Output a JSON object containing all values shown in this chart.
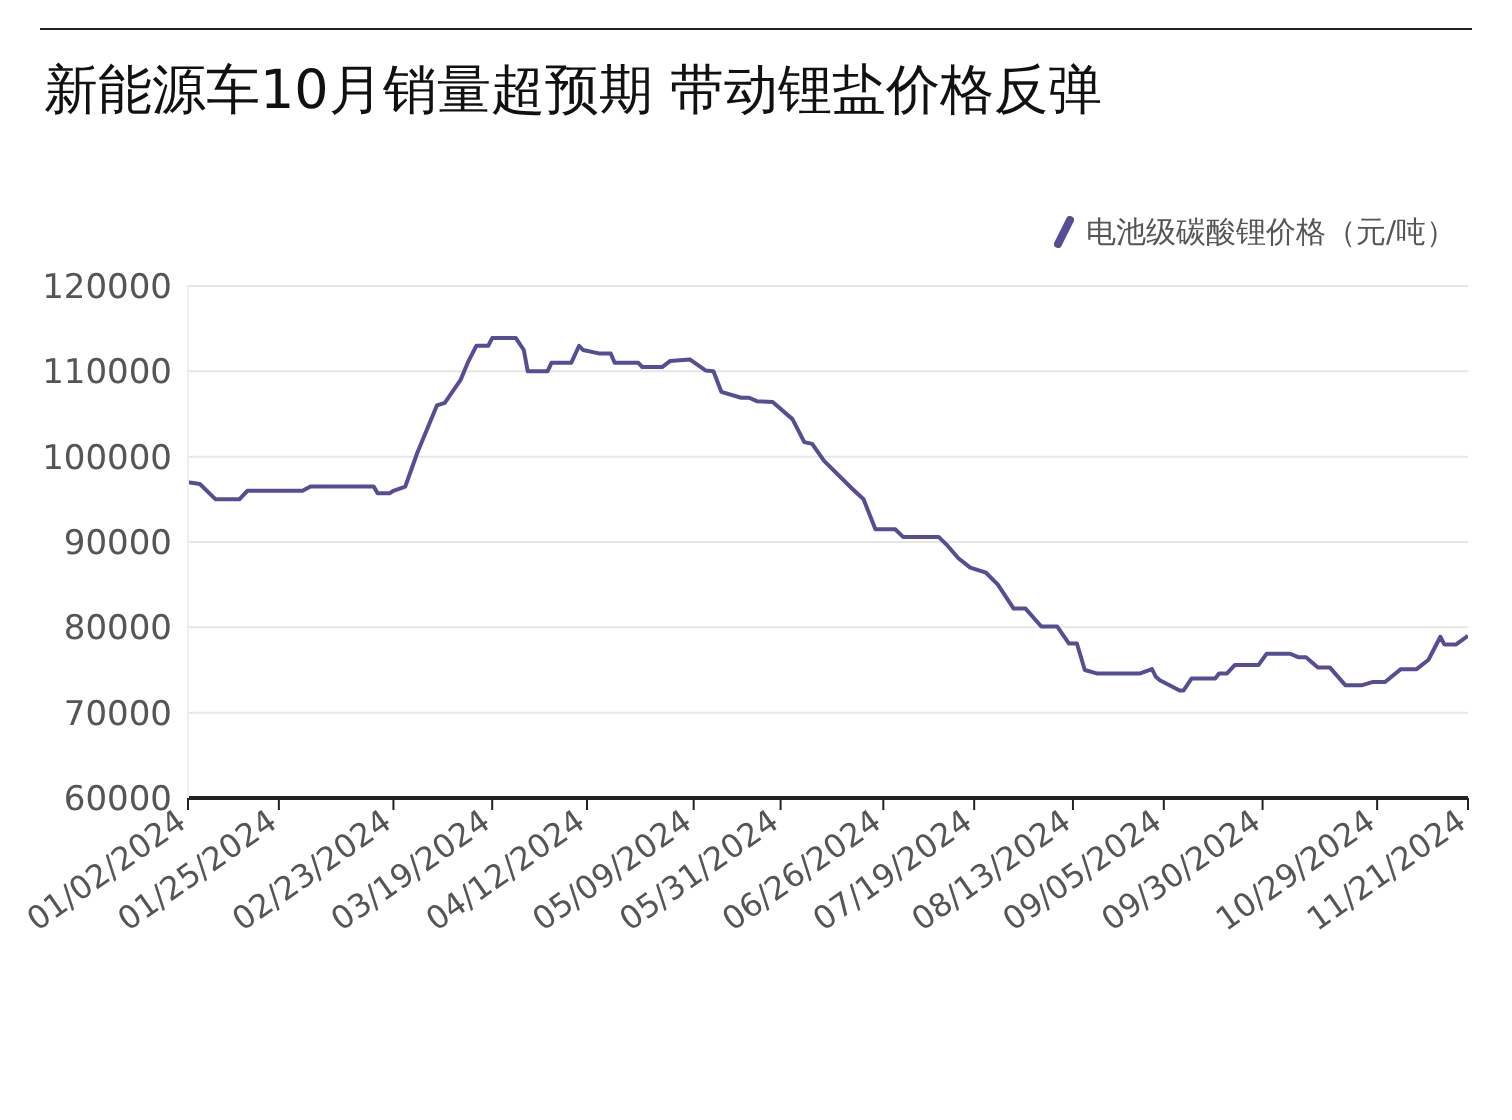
{
  "chart_data": {
    "type": "line",
    "title": "新能源车10月销量超预期 带动锂盐价格反弹",
    "x": [
      "2024-01-02",
      "2024-01-05",
      "2024-01-09",
      "2024-01-15",
      "2024-01-17",
      "2024-01-31",
      "2024-02-02",
      "2024-02-18",
      "2024-02-19",
      "2024-02-22",
      "2024-02-23",
      "2024-02-26",
      "2024-02-29",
      "2024-03-05",
      "2024-03-07",
      "2024-03-11",
      "2024-03-13",
      "2024-03-15",
      "2024-03-18",
      "2024-03-19",
      "2024-03-25",
      "2024-03-27",
      "2024-03-28",
      "2024-04-02",
      "2024-04-03",
      "2024-04-08",
      "2024-04-10",
      "2024-04-11",
      "2024-04-15",
      "2024-04-18",
      "2024-04-19",
      "2024-04-25",
      "2024-04-26",
      "2024-05-01",
      "2024-05-03",
      "2024-05-08",
      "2024-05-12",
      "2024-05-14",
      "2024-05-16",
      "2024-05-21",
      "2024-05-23",
      "2024-05-25",
      "2024-05-29",
      "2024-06-03",
      "2024-06-06",
      "2024-06-08",
      "2024-06-11",
      "2024-06-18",
      "2024-06-21",
      "2024-06-24",
      "2024-06-29",
      "2024-07-01",
      "2024-07-10",
      "2024-07-12",
      "2024-07-15",
      "2024-07-18",
      "2024-07-22",
      "2024-07-25",
      "2024-07-29",
      "2024-08-01",
      "2024-08-05",
      "2024-08-09",
      "2024-08-12",
      "2024-08-14",
      "2024-08-16",
      "2024-08-19",
      "2024-08-30",
      "2024-09-02",
      "2024-09-03",
      "2024-09-04",
      "2024-09-09",
      "2024-09-10",
      "2024-09-12",
      "2024-09-18",
      "2024-09-19",
      "2024-09-21",
      "2024-09-23",
      "2024-09-29",
      "2024-10-01",
      "2024-10-07",
      "2024-10-09",
      "2024-10-11",
      "2024-10-14",
      "2024-10-17",
      "2024-10-21",
      "2024-10-25",
      "2024-10-28",
      "2024-10-31",
      "2024-11-04",
      "2024-11-08",
      "2024-11-11",
      "2024-11-14",
      "2024-11-15",
      "2024-11-18",
      "2024-11-21"
    ],
    "series": [
      {
        "name": "电池级碳酸锂价格（元/吨）",
        "color": "#544e94",
        "values": [
          97000,
          96800,
          95000,
          95000,
          96000,
          96000,
          96500,
          96500,
          95700,
          95700,
          96000,
          96500,
          100400,
          106000,
          106300,
          109000,
          111200,
          113000,
          113000,
          113900,
          113900,
          112500,
          110000,
          110000,
          111000,
          111000,
          113000,
          112500,
          112100,
          112100,
          111000,
          111000,
          110500,
          110500,
          111200,
          111400,
          110100,
          110000,
          107600,
          106900,
          106900,
          106500,
          106400,
          104400,
          101700,
          101500,
          99500,
          96300,
          95000,
          91500,
          91500,
          90600,
          90600,
          89700,
          88100,
          87000,
          86400,
          85000,
          82200,
          82200,
          80100,
          80100,
          78100,
          78100,
          75000,
          74600,
          74600,
          75100,
          74200,
          73800,
          72600,
          72600,
          74000,
          74000,
          74600,
          74600,
          75600,
          75600,
          76900,
          76900,
          76500,
          76500,
          75300,
          75300,
          73200,
          73200,
          73600,
          73600,
          75100,
          75100,
          76200,
          78900,
          78000,
          78000,
          79000
        ]
      }
    ],
    "xlim": [
      "2024-01-02",
      "2024-11-21"
    ],
    "xticks": [
      {
        "value": "2024-01-02",
        "label": "01/02/2024"
      },
      {
        "value": "2024-01-25",
        "label": "01/25/2024"
      },
      {
        "value": "2024-02-23",
        "label": "02/23/2024"
      },
      {
        "value": "2024-03-19",
        "label": "03/19/2024"
      },
      {
        "value": "2024-04-12",
        "label": "04/12/2024"
      },
      {
        "value": "2024-05-09",
        "label": "05/09/2024"
      },
      {
        "value": "2024-05-31",
        "label": "05/31/2024"
      },
      {
        "value": "2024-06-26",
        "label": "06/26/2024"
      },
      {
        "value": "2024-07-19",
        "label": "07/19/2024"
      },
      {
        "value": "2024-08-13",
        "label": "08/13/2024"
      },
      {
        "value": "2024-09-05",
        "label": "09/05/2024"
      },
      {
        "value": "2024-09-30",
        "label": "09/30/2024"
      },
      {
        "value": "2024-10-29",
        "label": "10/29/2024"
      },
      {
        "value": "2024-11-21",
        "label": "11/21/2024"
      }
    ],
    "ylim": [
      60000,
      120000
    ],
    "yticks": [
      60000,
      70000,
      80000,
      90000,
      100000,
      110000,
      120000
    ],
    "grid": "y",
    "legend": "top right",
    "marker": "none",
    "line_style": "solid"
  }
}
